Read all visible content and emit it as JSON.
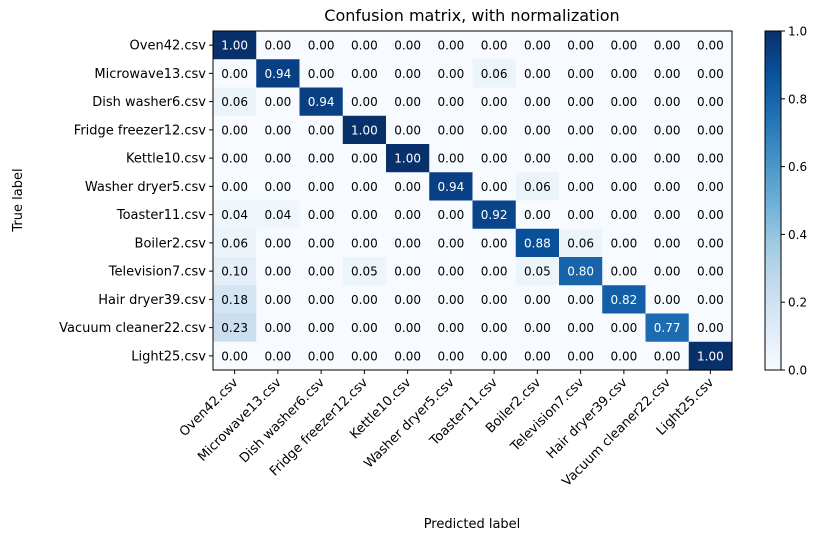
{
  "chart_data": {
    "type": "heatmap",
    "title": "Confusion matrix, with normalization",
    "xlabel": "Predicted label",
    "ylabel": "True label",
    "labels": [
      "Oven42.csv",
      "Microwave13.csv",
      "Dish washer6.csv",
      "Fridge freezer12.csv",
      "Kettle10.csv",
      "Washer dryer5.csv",
      "Toaster11.csv",
      "Boiler2.csv",
      "Television7.csv",
      "Hair dryer39.csv",
      "Vacuum cleaner22.csv",
      "Light25.csv"
    ],
    "matrix": [
      [
        1.0,
        0.0,
        0.0,
        0.0,
        0.0,
        0.0,
        0.0,
        0.0,
        0.0,
        0.0,
        0.0,
        0.0
      ],
      [
        0.0,
        0.94,
        0.0,
        0.0,
        0.0,
        0.0,
        0.06,
        0.0,
        0.0,
        0.0,
        0.0,
        0.0
      ],
      [
        0.06,
        0.0,
        0.94,
        0.0,
        0.0,
        0.0,
        0.0,
        0.0,
        0.0,
        0.0,
        0.0,
        0.0
      ],
      [
        0.0,
        0.0,
        0.0,
        1.0,
        0.0,
        0.0,
        0.0,
        0.0,
        0.0,
        0.0,
        0.0,
        0.0
      ],
      [
        0.0,
        0.0,
        0.0,
        0.0,
        1.0,
        0.0,
        0.0,
        0.0,
        0.0,
        0.0,
        0.0,
        0.0
      ],
      [
        0.0,
        0.0,
        0.0,
        0.0,
        0.0,
        0.94,
        0.0,
        0.06,
        0.0,
        0.0,
        0.0,
        0.0
      ],
      [
        0.04,
        0.04,
        0.0,
        0.0,
        0.0,
        0.0,
        0.92,
        0.0,
        0.0,
        0.0,
        0.0,
        0.0
      ],
      [
        0.06,
        0.0,
        0.0,
        0.0,
        0.0,
        0.0,
        0.0,
        0.88,
        0.06,
        0.0,
        0.0,
        0.0
      ],
      [
        0.1,
        0.0,
        0.0,
        0.05,
        0.0,
        0.0,
        0.0,
        0.05,
        0.8,
        0.0,
        0.0,
        0.0
      ],
      [
        0.18,
        0.0,
        0.0,
        0.0,
        0.0,
        0.0,
        0.0,
        0.0,
        0.0,
        0.82,
        0.0,
        0.0
      ],
      [
        0.23,
        0.0,
        0.0,
        0.0,
        0.0,
        0.0,
        0.0,
        0.0,
        0.0,
        0.0,
        0.77,
        0.0
      ],
      [
        0.0,
        0.0,
        0.0,
        0.0,
        0.0,
        0.0,
        0.0,
        0.0,
        0.0,
        0.0,
        0.0,
        1.0
      ]
    ],
    "value_format_decimals": 2,
    "color_range": [
      0.0,
      1.0
    ],
    "colormap": "Blues",
    "colormap_stops": [
      "#f7fbff",
      "#deebf7",
      "#c6dbef",
      "#9ecae1",
      "#6baed6",
      "#4292c6",
      "#2171b5",
      "#08519c",
      "#08306b"
    ],
    "colorbar_ticks": [
      "0.0",
      "0.2",
      "0.4",
      "0.6",
      "0.8",
      "1.0"
    ],
    "text_threshold": 0.5,
    "text_color_dark": "#000000",
    "text_color_light": "#ffffff",
    "grid": false
  }
}
